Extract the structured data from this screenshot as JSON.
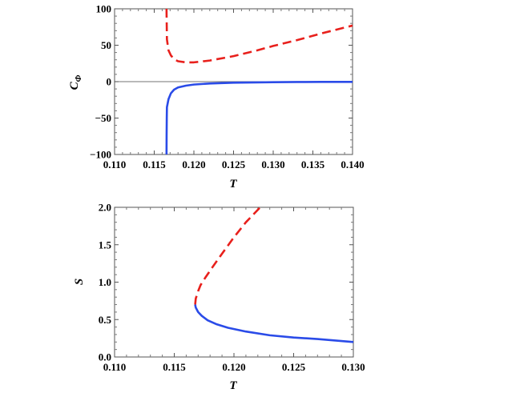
{
  "chart_data": [
    {
      "type": "line",
      "xlabel": "T",
      "ylabel": "C",
      "ylabel_sub": "Φ",
      "xlim": [
        0.11,
        0.14
      ],
      "ylim": [
        -100,
        100
      ],
      "x_ticks": [
        "0.110",
        "0.115",
        "0.120",
        "0.125",
        "0.130",
        "0.135",
        "0.140"
      ],
      "y_ticks": [
        "100",
        "50",
        "0",
        "−50",
        "−100"
      ],
      "zero_line": true,
      "series": [
        {
          "style": "dashed",
          "color": "#e8201c",
          "x": [
            0.11655,
            0.11656,
            0.11658,
            0.1166,
            0.1168,
            0.1171,
            0.1175,
            0.118,
            0.119,
            0.12,
            0.122,
            0.125,
            0.128,
            0.13,
            0.133,
            0.136,
            0.14
          ],
          "y": [
            100,
            90,
            75,
            58,
            43,
            36,
            31,
            28,
            26.5,
            26.5,
            29,
            35,
            43,
            49,
            57,
            66,
            77
          ]
        },
        {
          "style": "solid",
          "color": "#2a4be8",
          "x": [
            0.11655,
            0.11656,
            0.11658,
            0.1166,
            0.1168,
            0.1171,
            0.1175,
            0.118,
            0.119,
            0.12,
            0.122,
            0.125,
            0.128,
            0.13,
            0.133,
            0.136,
            0.14
          ],
          "y": [
            -100,
            -75,
            -50,
            -35,
            -24,
            -16,
            -11,
            -8,
            -5.5,
            -4,
            -2.5,
            -1.5,
            -1,
            -0.8,
            -0.5,
            -0.4,
            -0.3
          ]
        }
      ]
    },
    {
      "type": "line",
      "xlabel": "T",
      "ylabel": "S",
      "xlim": [
        0.11,
        0.13
      ],
      "ylim": [
        0.0,
        2.0
      ],
      "x_ticks": [
        "0.110",
        "0.115",
        "0.120",
        "0.125",
        "0.130"
      ],
      "y_ticks": [
        "2.0",
        "1.5",
        "1.0",
        "0.5",
        "0.0"
      ],
      "series": [
        {
          "style": "dashed",
          "color": "#e8201c",
          "x": [
            0.11675,
            0.1168,
            0.117,
            0.1172,
            0.1176,
            0.1182,
            0.119,
            0.12,
            0.121,
            0.1222
          ],
          "y": [
            0.7,
            0.78,
            0.88,
            0.96,
            1.06,
            1.2,
            1.38,
            1.6,
            1.8,
            2.0
          ]
        },
        {
          "style": "solid",
          "color": "#2a4be8",
          "x": [
            0.11675,
            0.1168,
            0.117,
            0.1173,
            0.1178,
            0.1185,
            0.1195,
            0.121,
            0.123,
            0.125,
            0.127,
            0.13
          ],
          "y": [
            0.7,
            0.66,
            0.6,
            0.55,
            0.49,
            0.44,
            0.39,
            0.34,
            0.29,
            0.26,
            0.24,
            0.2
          ]
        }
      ]
    }
  ]
}
